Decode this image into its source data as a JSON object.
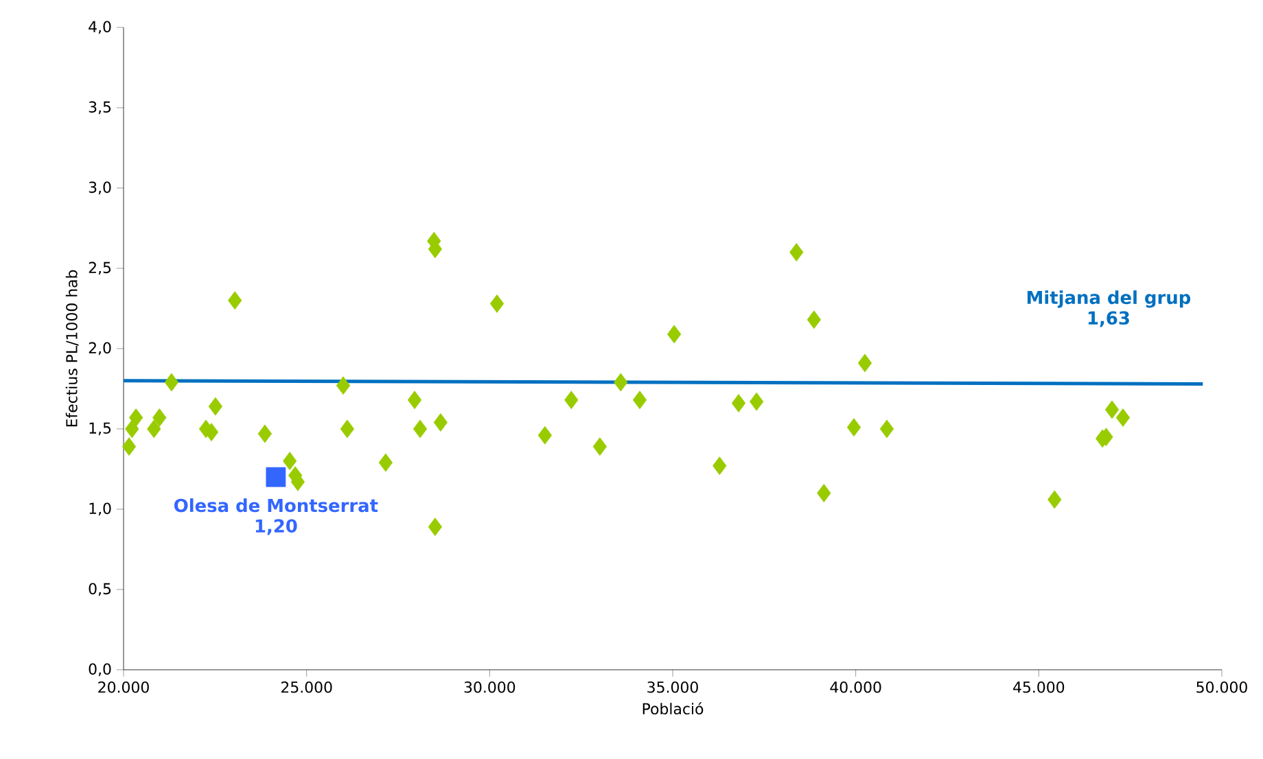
{
  "chart_data": {
    "type": "scatter",
    "xlabel": "Població",
    "ylabel": "Efectius PL/1000 hab",
    "xlim": [
      20000,
      50000
    ],
    "ylim": [
      0,
      4
    ],
    "xticks": [
      {
        "value": 20000,
        "label": "20.000"
      },
      {
        "value": 25000,
        "label": "25.000"
      },
      {
        "value": 30000,
        "label": "30.000"
      },
      {
        "value": 35000,
        "label": "35.000"
      },
      {
        "value": 40000,
        "label": "40.000"
      },
      {
        "value": 45000,
        "label": "45.000"
      },
      {
        "value": 50000,
        "label": "50.000"
      }
    ],
    "yticks": [
      {
        "value": 0,
        "label": "0,0"
      },
      {
        "value": 0.5,
        "label": "0,5"
      },
      {
        "value": 1,
        "label": "1,0"
      },
      {
        "value": 1.5,
        "label": "1,5"
      },
      {
        "value": 2,
        "label": "2,0"
      },
      {
        "value": 2.5,
        "label": "2,5"
      },
      {
        "value": 3,
        "label": "3,0"
      },
      {
        "value": 3.5,
        "label": "3,5"
      },
      {
        "value": 4,
        "label": "4,0"
      }
    ],
    "series": [
      {
        "color": "#99cc00",
        "marker": "diamond",
        "x": [
          20150,
          20230,
          20340,
          20830,
          20980,
          21310,
          22250,
          22400,
          22510,
          23040,
          23860,
          24540,
          24690,
          24760,
          26000,
          26110,
          27160,
          27950,
          28100,
          28480,
          28510,
          28510,
          28660,
          30200,
          31510,
          32230,
          33010,
          33580,
          34100,
          35040,
          36280,
          36800,
          37290,
          38380,
          38860,
          39130,
          39950,
          40250,
          40850,
          45430,
          46740,
          46840,
          47000,
          47300
        ],
        "values": [
          1.39,
          1.5,
          1.57,
          1.5,
          1.57,
          1.79,
          1.5,
          1.48,
          1.64,
          2.3,
          1.47,
          1.3,
          1.21,
          1.17,
          1.77,
          1.5,
          1.29,
          1.68,
          1.5,
          2.67,
          2.62,
          0.89,
          1.54,
          2.28,
          1.46,
          1.68,
          1.39,
          1.79,
          1.68,
          2.09,
          1.27,
          1.66,
          1.67,
          2.6,
          2.18,
          1.1,
          1.51,
          1.91,
          1.5,
          1.06,
          1.44,
          1.45,
          1.62,
          1.57
        ]
      },
      {
        "type": "scatter",
        "color": "#3366ff",
        "marker": "square",
        "x": [
          24160
        ],
        "values": [
          1.2
        ]
      },
      {
        "type": "line",
        "color": "#0070c0",
        "x": [
          20000,
          49480
        ],
        "values": [
          1.8,
          1.78
        ]
      }
    ],
    "annotations": [
      "Olesa de Montserrat",
      "1,20",
      "Mitjana del grup",
      "1,63"
    ]
  }
}
